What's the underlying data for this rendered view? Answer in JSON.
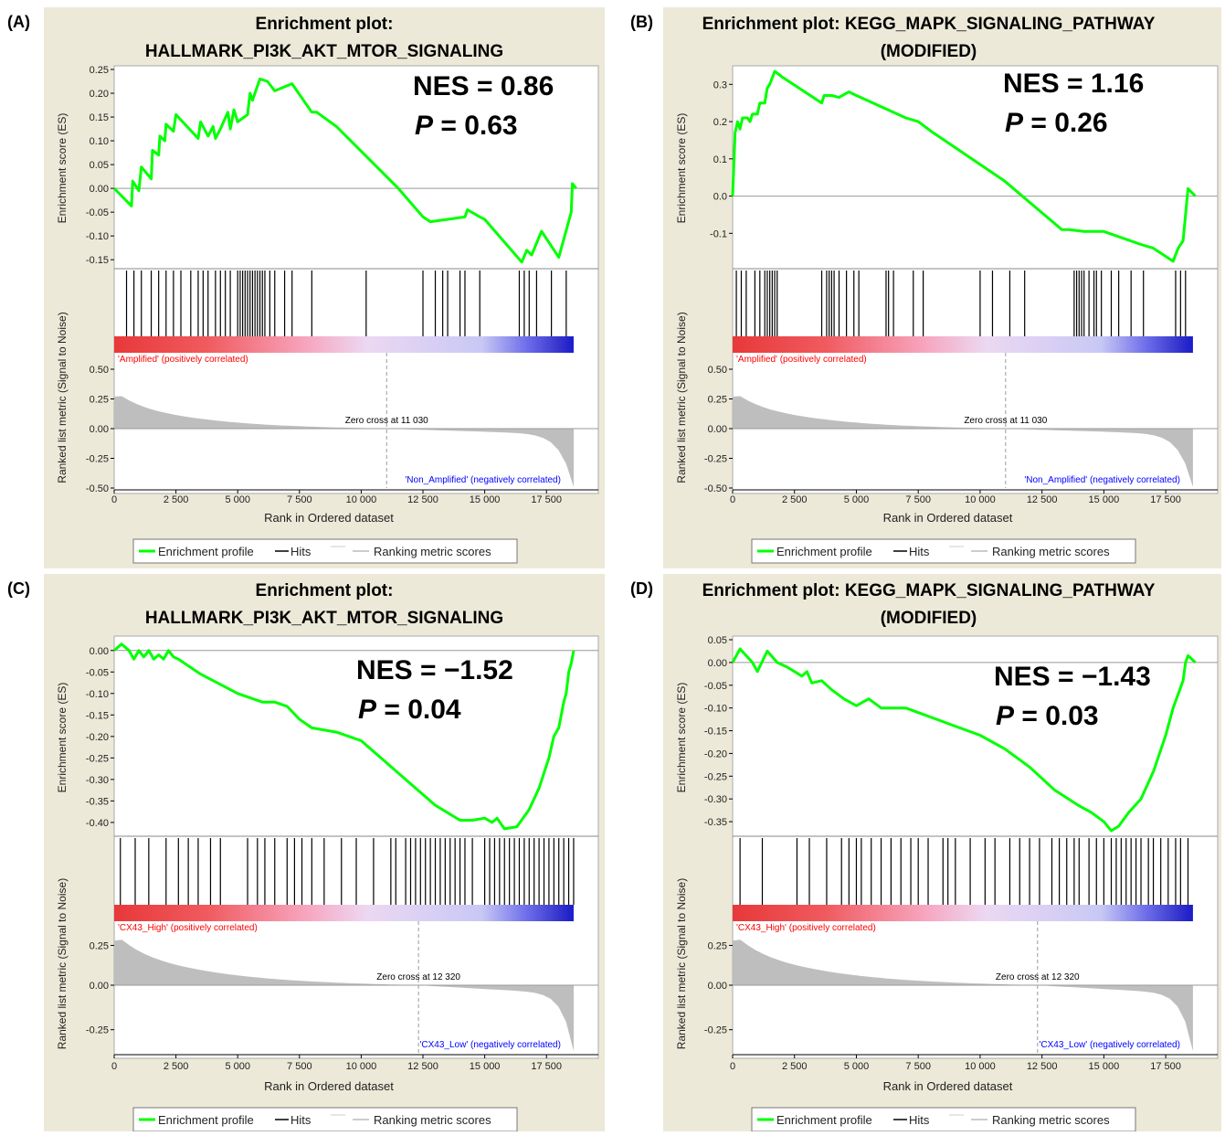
{
  "panels": [
    {
      "letter": "(A)",
      "title_lines": [
        "Enrichment plot:",
        "HALLMARK_PI3K_AKT_MTOR_SIGNALING"
      ],
      "nes": "NES = 0.86",
      "p_label": "P",
      "p_value": "= 0.63",
      "pos_label": "'Amplified' (positively correlated)",
      "neg_label": "'Non_Amplified' (negatively correlated)",
      "zero_cross": "Zero cross at 11 030"
    },
    {
      "letter": "(B)",
      "title_lines": [
        "Enrichment plot: KEGG_MAPK_SIGNALING_PATHWAY",
        "(MODIFIED)"
      ],
      "nes": "NES = 1.16",
      "p_label": "P",
      "p_value": "= 0.26",
      "pos_label": "'Amplified' (positively correlated)",
      "neg_label": "'Non_Amplified' (negatively correlated)",
      "zero_cross": "Zero cross at 11 030"
    },
    {
      "letter": "(C)",
      "title_lines": [
        "Enrichment plot:",
        "HALLMARK_PI3K_AKT_MTOR_SIGNALING"
      ],
      "nes": "NES = −1.52",
      "p_label": "P",
      "p_value": "= 0.04",
      "pos_label": "'CX43_High' (positively correlated)",
      "neg_label": "'CX43_Low' (negatively correlated)",
      "zero_cross": "Zero cross at 12 320"
    },
    {
      "letter": "(D)",
      "title_lines": [
        "Enrichment plot: KEGG_MAPK_SIGNALING_PATHWAY",
        "(MODIFIED)"
      ],
      "nes": "NES = −1.43",
      "p_label": "P",
      "p_value": "= 0.03",
      "pos_label": "'CX43_High' (positively correlated)",
      "neg_label": "'CX43_Low' (negatively correlated)",
      "zero_cross": "Zero cross at 12 320"
    }
  ],
  "legend": {
    "enrichment_profile": "Enrichment profile",
    "hits": "Hits",
    "ranking_metric": "Ranking metric scores"
  },
  "colors": {
    "panel_bg": "#ece9d8",
    "es_line": "#00ff00",
    "hits": "#000000",
    "metric_fill": "#bebebe",
    "pos_label": "#ff0000",
    "neg_label": "#0000ff"
  },
  "chart_data": [
    {
      "type": "line",
      "panel": "A",
      "xlabel": "Rank in Ordered dataset",
      "ylabel_es": "Enrichment score (ES)",
      "ylabel_metric": "Ranked list metric (Signal to Noise)",
      "x_ticks": [
        0,
        2500,
        5000,
        7500,
        10000,
        12500,
        15000,
        17500
      ],
      "x_tick_labels": [
        "0",
        "2 500",
        "5 000",
        "7 500",
        "10 000",
        "12 500",
        "15 000",
        "17 500"
      ],
      "xlim": [
        0,
        19600
      ],
      "n_genes": 18600,
      "es_ylim": [
        -0.165,
        0.25
      ],
      "es_ticks": [
        0.25,
        0.2,
        0.15,
        0.1,
        0.05,
        0.0,
        -0.05,
        -0.1,
        -0.15
      ],
      "es_tick_labels": [
        "0.25",
        "0.20",
        "0.15",
        "0.10",
        "0.05",
        "0.00",
        "-0.05",
        "-0.10",
        "-0.15"
      ],
      "es_points": [
        [
          0,
          0.0
        ],
        [
          700,
          -0.037
        ],
        [
          750,
          0.015
        ],
        [
          1000,
          -0.005
        ],
        [
          1100,
          0.045
        ],
        [
          1500,
          0.02
        ],
        [
          1550,
          0.08
        ],
        [
          1800,
          0.07
        ],
        [
          1850,
          0.11
        ],
        [
          2050,
          0.1
        ],
        [
          2100,
          0.135
        ],
        [
          2400,
          0.12
        ],
        [
          2500,
          0.155
        ],
        [
          3400,
          0.105
        ],
        [
          3500,
          0.14
        ],
        [
          3800,
          0.11
        ],
        [
          4000,
          0.13
        ],
        [
          4100,
          0.105
        ],
        [
          4300,
          0.125
        ],
        [
          4600,
          0.16
        ],
        [
          4700,
          0.125
        ],
        [
          4850,
          0.165
        ],
        [
          5000,
          0.14
        ],
        [
          5400,
          0.155
        ],
        [
          5500,
          0.2
        ],
        [
          5600,
          0.185
        ],
        [
          5900,
          0.23
        ],
        [
          6200,
          0.225
        ],
        [
          6500,
          0.205
        ],
        [
          7200,
          0.22
        ],
        [
          8000,
          0.16
        ],
        [
          8200,
          0.16
        ],
        [
          9000,
          0.13
        ],
        [
          11500,
          0.0
        ],
        [
          12500,
          -0.06
        ],
        [
          12800,
          -0.07
        ],
        [
          13500,
          -0.065
        ],
        [
          14200,
          -0.06
        ],
        [
          14300,
          -0.045
        ],
        [
          14800,
          -0.06
        ],
        [
          15000,
          -0.065
        ],
        [
          16500,
          -0.155
        ],
        [
          16700,
          -0.13
        ],
        [
          16900,
          -0.14
        ],
        [
          17300,
          -0.09
        ],
        [
          18000,
          -0.145
        ],
        [
          18500,
          -0.05
        ],
        [
          18550,
          0.01
        ],
        [
          18700,
          0.0
        ]
      ],
      "hit_positions": [
        500,
        800,
        1100,
        1500,
        1800,
        2100,
        2400,
        2700,
        3100,
        3400,
        3600,
        3800,
        4100,
        4300,
        4500,
        4700,
        5000,
        5100,
        5200,
        5300,
        5400,
        5500,
        5600,
        5700,
        5800,
        5900,
        6000,
        6100,
        6300,
        6500,
        6900,
        7200,
        8000,
        10200,
        12500,
        13000,
        13300,
        13500,
        14000,
        14200,
        14800,
        16400,
        16600,
        16800,
        17100,
        17700,
        18300
      ],
      "metric_ylim": [
        -0.5,
        0.5
      ],
      "metric_ticks": [
        0.5,
        0.25,
        0.0,
        -0.25,
        -0.5
      ],
      "metric_tick_labels": [
        "0.50",
        "0.25",
        "0.00",
        "-0.25",
        "-0.50"
      ],
      "metric_start": 0.27,
      "metric_end": -0.5,
      "zero_cross_rank": 11030
    },
    {
      "type": "line",
      "panel": "B",
      "xlabel": "Rank in Ordered dataset",
      "ylabel_es": "Enrichment score (ES)",
      "ylabel_metric": "Ranked list metric (Signal to Noise)",
      "x_ticks": [
        0,
        2500,
        5000,
        7500,
        10000,
        12500,
        15000,
        17500
      ],
      "x_tick_labels": [
        "0",
        "2 500",
        "5 000",
        "7 500",
        "10 000",
        "12 500",
        "15 000",
        "17 500"
      ],
      "xlim": [
        0,
        19600
      ],
      "n_genes": 18600,
      "es_ylim": [
        -0.19,
        0.34
      ],
      "es_ticks": [
        0.3,
        0.2,
        0.1,
        0.0,
        -0.1
      ],
      "es_tick_labels": [
        "0.3",
        "0.2",
        "0.1",
        "0.0",
        "-0.1"
      ],
      "es_points": [
        [
          0,
          0.0
        ],
        [
          100,
          0.17
        ],
        [
          200,
          0.2
        ],
        [
          300,
          0.18
        ],
        [
          400,
          0.21
        ],
        [
          600,
          0.21
        ],
        [
          700,
          0.2
        ],
        [
          800,
          0.22
        ],
        [
          1000,
          0.22
        ],
        [
          1100,
          0.25
        ],
        [
          1300,
          0.25
        ],
        [
          1400,
          0.29
        ],
        [
          1500,
          0.3
        ],
        [
          1700,
          0.335
        ],
        [
          2000,
          0.32
        ],
        [
          3600,
          0.25
        ],
        [
          3700,
          0.27
        ],
        [
          4000,
          0.27
        ],
        [
          4300,
          0.265
        ],
        [
          4700,
          0.28
        ],
        [
          5000,
          0.27
        ],
        [
          6000,
          0.24
        ],
        [
          7000,
          0.21
        ],
        [
          7500,
          0.2
        ],
        [
          8000,
          0.175
        ],
        [
          11000,
          0.04
        ],
        [
          13300,
          -0.09
        ],
        [
          13600,
          -0.09
        ],
        [
          14200,
          -0.095
        ],
        [
          15000,
          -0.095
        ],
        [
          16500,
          -0.13
        ],
        [
          17000,
          -0.14
        ],
        [
          17800,
          -0.175
        ],
        [
          18000,
          -0.14
        ],
        [
          18200,
          -0.12
        ],
        [
          18400,
          0.02
        ],
        [
          18700,
          0.0
        ]
      ],
      "hit_positions": [
        150,
        350,
        550,
        900,
        1100,
        1300,
        1400,
        1500,
        1600,
        1700,
        1800,
        3600,
        3800,
        3900,
        4000,
        4100,
        4300,
        4600,
        4900,
        5100,
        6200,
        6300,
        6500,
        7300,
        7700,
        10000,
        10500,
        11200,
        11800,
        13800,
        13900,
        14000,
        14100,
        14200,
        14400,
        14600,
        14700,
        14900,
        15300,
        15600,
        16100,
        16600,
        17900,
        18100,
        18300
      ],
      "metric_ylim": [
        -0.5,
        0.5
      ],
      "metric_ticks": [
        0.5,
        0.25,
        0.0,
        -0.25,
        -0.5
      ],
      "metric_tick_labels": [
        "0.50",
        "0.25",
        "0.00",
        "-0.25",
        "-0.50"
      ],
      "metric_start": 0.27,
      "metric_end": -0.5,
      "zero_cross_rank": 11030
    },
    {
      "type": "line",
      "panel": "C",
      "xlabel": "Rank in Ordered dataset",
      "ylabel_es": "Enrichment score (ES)",
      "ylabel_metric": "Ranked list metric (Signal to Noise)",
      "x_ticks": [
        0,
        2500,
        5000,
        7500,
        10000,
        12500,
        15000,
        17500
      ],
      "x_tick_labels": [
        "0",
        "2 500",
        "5 000",
        "7 500",
        "10 000",
        "12 500",
        "15 000",
        "17 500"
      ],
      "xlim": [
        0,
        19600
      ],
      "n_genes": 18600,
      "es_ylim": [
        -0.43,
        0.025
      ],
      "es_ticks": [
        0.0,
        -0.05,
        -0.1,
        -0.15,
        -0.2,
        -0.25,
        -0.3,
        -0.35,
        -0.4
      ],
      "es_tick_labels": [
        "0.00",
        "-0.05",
        "-0.10",
        "-0.15",
        "-0.20",
        "-0.25",
        "-0.30",
        "-0.35",
        "-0.40"
      ],
      "es_points": [
        [
          0,
          0.0
        ],
        [
          300,
          0.015
        ],
        [
          600,
          0.0
        ],
        [
          800,
          -0.02
        ],
        [
          1000,
          0.0
        ],
        [
          1200,
          -0.015
        ],
        [
          1400,
          0.0
        ],
        [
          1600,
          -0.02
        ],
        [
          1800,
          -0.01
        ],
        [
          2000,
          -0.02
        ],
        [
          2200,
          0.0
        ],
        [
          2400,
          -0.015
        ],
        [
          2600,
          -0.02
        ],
        [
          3500,
          -0.055
        ],
        [
          4000,
          -0.07
        ],
        [
          5000,
          -0.1
        ],
        [
          5500,
          -0.11
        ],
        [
          6000,
          -0.12
        ],
        [
          6500,
          -0.12
        ],
        [
          7000,
          -0.13
        ],
        [
          7500,
          -0.16
        ],
        [
          8000,
          -0.18
        ],
        [
          9000,
          -0.19
        ],
        [
          10000,
          -0.21
        ],
        [
          11000,
          -0.26
        ],
        [
          12000,
          -0.31
        ],
        [
          13000,
          -0.36
        ],
        [
          14000,
          -0.395
        ],
        [
          14500,
          -0.395
        ],
        [
          15000,
          -0.39
        ],
        [
          15300,
          -0.4
        ],
        [
          15500,
          -0.39
        ],
        [
          15800,
          -0.415
        ],
        [
          16300,
          -0.41
        ],
        [
          16800,
          -0.37
        ],
        [
          17200,
          -0.32
        ],
        [
          17600,
          -0.25
        ],
        [
          17800,
          -0.2
        ],
        [
          18000,
          -0.18
        ],
        [
          18200,
          -0.12
        ],
        [
          18300,
          -0.1
        ],
        [
          18400,
          -0.05
        ],
        [
          18500,
          -0.03
        ],
        [
          18600,
          0.0
        ]
      ],
      "hit_positions": [
        250,
        850,
        1400,
        2100,
        2600,
        3000,
        3400,
        3900,
        4300,
        5400,
        5800,
        6100,
        6500,
        7000,
        7300,
        7600,
        8000,
        8500,
        9200,
        9800,
        10500,
        11200,
        11400,
        11800,
        12000,
        12200,
        12400,
        12600,
        12800,
        13000,
        13200,
        13400,
        13600,
        13800,
        14000,
        14200,
        14500,
        15000,
        15200,
        15400,
        15600,
        15800,
        16000,
        16200,
        16400,
        16600,
        16800,
        17000,
        17200,
        17400,
        17600,
        17800,
        18000,
        18200,
        18400,
        18600
      ],
      "metric_ylim": [
        -0.38,
        0.31
      ],
      "metric_ticks": [
        0.25,
        0.0,
        -0.25
      ],
      "metric_tick_labels": [
        "0.25",
        "0.00",
        "-0.25"
      ],
      "metric_start": 0.28,
      "metric_end": -0.38,
      "zero_cross_rank": 12320
    },
    {
      "type": "line",
      "panel": "D",
      "xlabel": "Rank in Ordered dataset",
      "ylabel_es": "Enrichment score (ES)",
      "ylabel_metric": "Ranked list metric (Signal to Noise)",
      "x_ticks": [
        0,
        2500,
        5000,
        7500,
        10000,
        12500,
        15000,
        17500
      ],
      "x_tick_labels": [
        "0",
        "2 500",
        "5 000",
        "7 500",
        "10 000",
        "12 500",
        "15 000",
        "17 500"
      ],
      "xlim": [
        0,
        19600
      ],
      "n_genes": 18600,
      "es_ylim": [
        -0.38,
        0.05
      ],
      "es_ticks": [
        0.05,
        0.0,
        -0.05,
        -0.1,
        -0.15,
        -0.2,
        -0.25,
        -0.3,
        -0.35
      ],
      "es_tick_labels": [
        "0.05",
        "0.00",
        "-0.05",
        "-0.10",
        "-0.15",
        "-0.20",
        "-0.25",
        "-0.30",
        "-0.35"
      ],
      "es_points": [
        [
          0,
          0.0
        ],
        [
          300,
          0.03
        ],
        [
          800,
          0.0
        ],
        [
          1000,
          -0.02
        ],
        [
          1400,
          0.025
        ],
        [
          1800,
          0.0
        ],
        [
          2200,
          -0.01
        ],
        [
          2800,
          -0.03
        ],
        [
          3000,
          -0.02
        ],
        [
          3200,
          -0.045
        ],
        [
          3600,
          -0.04
        ],
        [
          4000,
          -0.06
        ],
        [
          4500,
          -0.08
        ],
        [
          5000,
          -0.095
        ],
        [
          5500,
          -0.08
        ],
        [
          6000,
          -0.1
        ],
        [
          7000,
          -0.1
        ],
        [
          8000,
          -0.12
        ],
        [
          9000,
          -0.14
        ],
        [
          10000,
          -0.16
        ],
        [
          11000,
          -0.19
        ],
        [
          12000,
          -0.23
        ],
        [
          13000,
          -0.28
        ],
        [
          14000,
          -0.315
        ],
        [
          14500,
          -0.33
        ],
        [
          15000,
          -0.35
        ],
        [
          15300,
          -0.37
        ],
        [
          15600,
          -0.36
        ],
        [
          16000,
          -0.33
        ],
        [
          16500,
          -0.3
        ],
        [
          17000,
          -0.24
        ],
        [
          17500,
          -0.16
        ],
        [
          17800,
          -0.1
        ],
        [
          18000,
          -0.07
        ],
        [
          18200,
          -0.04
        ],
        [
          18300,
          0.0
        ],
        [
          18400,
          0.015
        ],
        [
          18700,
          0.0
        ]
      ],
      "hit_positions": [
        300,
        1200,
        2600,
        3100,
        3800,
        4400,
        4700,
        5000,
        5200,
        5600,
        6000,
        6400,
        6800,
        7200,
        7500,
        7900,
        8500,
        8700,
        9000,
        9600,
        10200,
        10600,
        11200,
        11600,
        12000,
        12400,
        12900,
        13200,
        13500,
        13800,
        14000,
        14400,
        14700,
        15000,
        15300,
        15500,
        15700,
        15900,
        16100,
        16300,
        16500,
        16800,
        17000,
        17300,
        17600,
        17900,
        18100,
        18400
      ],
      "metric_ylim": [
        -0.38,
        0.31
      ],
      "metric_ticks": [
        0.25,
        0.0,
        -0.25
      ],
      "metric_tick_labels": [
        "0.25",
        "0.00",
        "-0.25"
      ],
      "metric_start": 0.28,
      "metric_end": -0.38,
      "zero_cross_rank": 12320
    }
  ]
}
